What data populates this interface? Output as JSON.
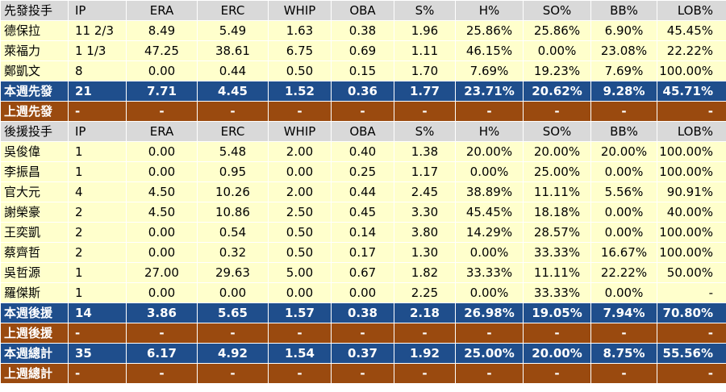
{
  "colors": {
    "header_bg": "#d9d9d9",
    "row_bg": "#ffffcc",
    "week_bg": "#1f4e8c",
    "prev_bg": "#9a4a0f"
  },
  "headers": {
    "stats": [
      "IP",
      "ERA",
      "ERC",
      "WHIP",
      "OBA",
      "S%",
      "H%",
      "SO%",
      "BB%",
      "LOB%"
    ],
    "starters_title": "先發投手",
    "relievers_title": "後援投手"
  },
  "starters": [
    [
      "德保拉",
      "11 2/3",
      "8.49",
      "5.49",
      "1.63",
      "0.38",
      "1.96",
      "25.86%",
      "25.86%",
      "6.90%",
      "45.45%"
    ],
    [
      "萊福力",
      "1 1/3",
      "47.25",
      "38.61",
      "6.75",
      "0.69",
      "1.11",
      "46.15%",
      "0.00%",
      "23.08%",
      "22.22%"
    ],
    [
      "鄭凱文",
      "8",
      "0.00",
      "0.44",
      "0.50",
      "0.15",
      "1.70",
      "7.69%",
      "19.23%",
      "7.69%",
      "100.00%"
    ]
  ],
  "starters_week": [
    "本週先發",
    "21",
    "7.71",
    "4.45",
    "1.52",
    "0.36",
    "1.77",
    "23.71%",
    "20.62%",
    "9.28%",
    "45.71%"
  ],
  "starters_prev": [
    "上週先發",
    "-",
    "-",
    "-",
    "-",
    "-",
    "-",
    "-",
    "-",
    "-",
    "-"
  ],
  "relievers": [
    [
      "吳俊偉",
      "1",
      "0.00",
      "5.48",
      "2.00",
      "0.40",
      "1.38",
      "20.00%",
      "20.00%",
      "20.00%",
      "100.00%"
    ],
    [
      "李振昌",
      "1",
      "0.00",
      "0.95",
      "0.00",
      "0.25",
      "1.17",
      "0.00%",
      "25.00%",
      "0.00%",
      "100.00%"
    ],
    [
      "官大元",
      "4",
      "4.50",
      "10.26",
      "2.00",
      "0.44",
      "2.45",
      "38.89%",
      "11.11%",
      "5.56%",
      "90.91%"
    ],
    [
      "謝榮豪",
      "2",
      "4.50",
      "10.86",
      "2.50",
      "0.45",
      "3.30",
      "45.45%",
      "18.18%",
      "0.00%",
      "40.00%"
    ],
    [
      "王奕凱",
      "2",
      "0.00",
      "0.54",
      "0.50",
      "0.14",
      "3.80",
      "14.29%",
      "28.57%",
      "0.00%",
      "100.00%"
    ],
    [
      "蔡齊哲",
      "2",
      "0.00",
      "0.32",
      "0.50",
      "0.17",
      "1.30",
      "0.00%",
      "33.33%",
      "16.67%",
      "100.00%"
    ],
    [
      "吳哲源",
      "1",
      "27.00",
      "29.63",
      "5.00",
      "0.67",
      "1.82",
      "33.33%",
      "11.11%",
      "22.22%",
      "50.00%"
    ],
    [
      "羅傑斯",
      "1",
      "0.00",
      "0.00",
      "0.00",
      "0.00",
      "2.25",
      "0.00%",
      "33.33%",
      "0.00%",
      "-"
    ]
  ],
  "relievers_week": [
    "本週後援",
    "14",
    "3.86",
    "5.65",
    "1.57",
    "0.38",
    "2.18",
    "26.98%",
    "19.05%",
    "7.94%",
    "70.80%"
  ],
  "relievers_prev": [
    "上週後援",
    "-",
    "-",
    "-",
    "-",
    "-",
    "-",
    "-",
    "-",
    "-",
    "-"
  ],
  "total_week": [
    "本週總計",
    "35",
    "6.17",
    "4.92",
    "1.54",
    "0.37",
    "1.92",
    "25.00%",
    "20.00%",
    "8.75%",
    "55.56%"
  ],
  "total_prev": [
    "上週總計",
    "-",
    "-",
    "-",
    "-",
    "-",
    "-",
    "-",
    "-",
    "-",
    "-"
  ]
}
